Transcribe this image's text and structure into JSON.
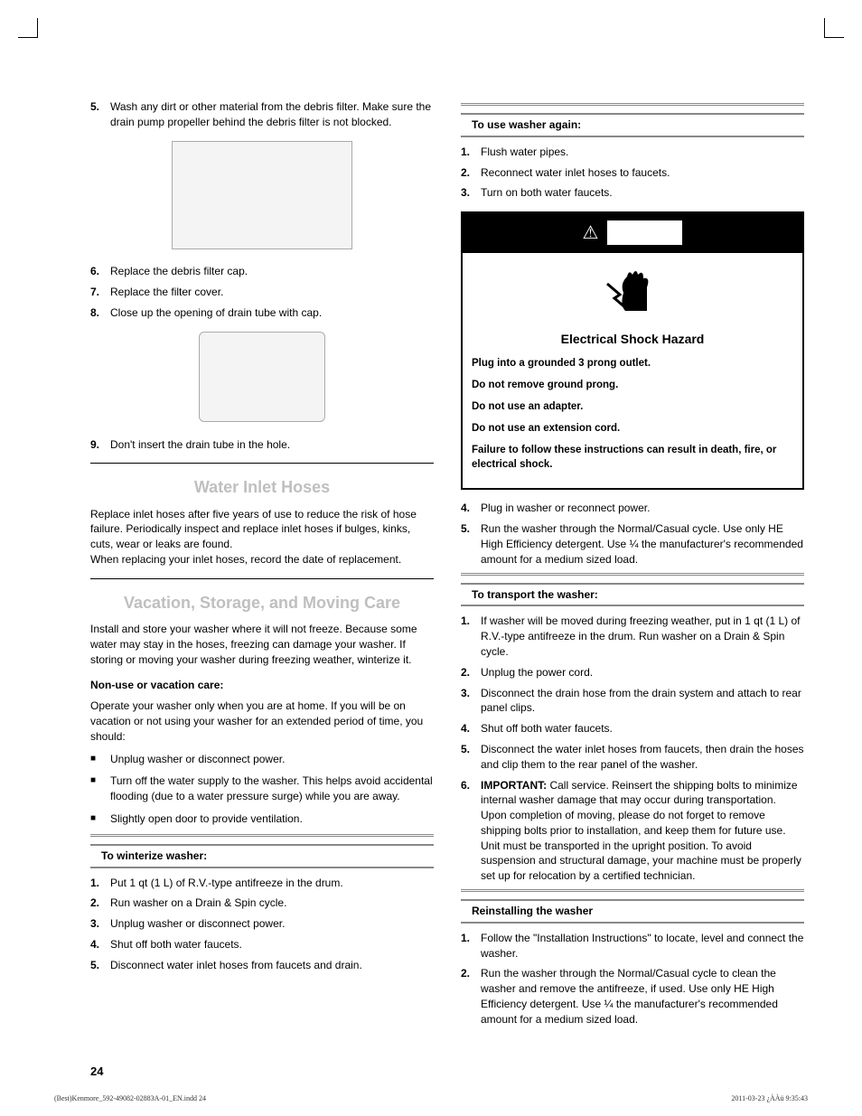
{
  "left": {
    "steps_a": [
      {
        "n": "5.",
        "t": "Wash any dirt or other material from the debris filter. Make sure the drain pump propeller behind the debris filter is not blocked."
      }
    ],
    "steps_b": [
      {
        "n": "6.",
        "t": "Replace the debris filter cap."
      },
      {
        "n": "7.",
        "t": "Replace the filter cover."
      },
      {
        "n": "8.",
        "t": "Close up the opening of drain tube with cap."
      }
    ],
    "steps_c": [
      {
        "n": "9.",
        "t": "Don't insert the drain tube in the hole."
      }
    ],
    "h_water": "Water Inlet Hoses",
    "water_p": "Replace inlet hoses after five years of use to reduce the risk of hose failure. Periodically inspect and replace inlet hoses if bulges, kinks, cuts, wear or leaks are found.\nWhen replacing your inlet hoses, record the date of replacement.",
    "h_vac": "Vacation, Storage, and Moving Care",
    "vac_p": "Install and store your washer where it will not freeze. Because some water may stay in the hoses, freezing can damage your washer. If storing or moving your washer during freezing weather, winterize it.",
    "nonuse_h": "Non-use or vacation care:",
    "nonuse_p": "Operate your washer only when you are at home. If you will be on vacation or not using your washer for an extended period of time, you should:",
    "nonuse_items": [
      "Unplug washer or disconnect power.",
      "Turn off the water supply to the washer. This helps avoid accidental flooding (due to a water pressure surge) while you are away.",
      "Slightly open door to provide ventilation."
    ],
    "winter_h": "To winterize washer:",
    "winter_steps": [
      {
        "n": "1.",
        "t": "Put 1 qt (1 L) of R.V.-type antifreeze in the drum."
      },
      {
        "n": "2.",
        "t": "Run washer on a Drain & Spin cycle."
      },
      {
        "n": "3.",
        "t": "Unplug washer or disconnect power."
      },
      {
        "n": "4.",
        "t": "Shut off both water faucets."
      },
      {
        "n": "5.",
        "t": "Disconnect water inlet hoses from faucets and drain."
      }
    ]
  },
  "right": {
    "use_h": "To use washer again:",
    "use_steps": [
      {
        "n": "1.",
        "t": "Flush water pipes."
      },
      {
        "n": "2.",
        "t": "Reconnect water inlet hoses to faucets."
      },
      {
        "n": "3.",
        "t": "Turn on both water faucets."
      }
    ],
    "warn_title": "Electrical Shock Hazard",
    "warn_lines": [
      "Plug into a grounded 3 prong outlet.",
      "Do not remove ground prong.",
      "Do not use an adapter.",
      "Do not use an extension cord.",
      "Failure to follow these instructions can result in death, fire, or electrical shock."
    ],
    "after_warn_steps": [
      {
        "n": "4.",
        "t": "Plug in washer or reconnect power."
      },
      {
        "n": "5.",
        "t": "Run the washer through the Normal/Casual cycle. Use only HE High Efficiency detergent. Use ¼ the manufacturer's recommended amount for a medium sized load."
      }
    ],
    "transport_h": "To transport the washer:",
    "transport_steps": [
      {
        "n": "1.",
        "t": "If washer will be moved during freezing weather, put in 1 qt (1 L) of R.V.-type antifreeze in the drum. Run washer on a Drain & Spin cycle."
      },
      {
        "n": "2.",
        "t": "Unplug the power cord."
      },
      {
        "n": "3.",
        "t": "Disconnect the drain hose from the drain system and attach to rear panel clips."
      },
      {
        "n": "4.",
        "t": "Shut off both water faucets."
      },
      {
        "n": "5.",
        "t": "Disconnect the water inlet hoses from faucets, then drain the hoses and clip them to the rear panel of the washer."
      }
    ],
    "transport_important_label": "IMPORTANT:",
    "transport_important_n": "6.",
    "transport_important_t": " Call service.  Reinsert the shipping bolts to minimize internal washer damage that may occur during transportation. Upon completion of moving, please do not forget to remove shipping bolts prior to installation, and keep them for future use. Unit must be transported in the upright position. To avoid suspension and  structural damage, your machine must be properly set up for relocation by a certified technician.",
    "reinstall_h": "Reinstalling the washer",
    "reinstall_steps": [
      {
        "n": "1.",
        "t": "Follow the \"Installation Instructions\" to locate, level and connect the washer."
      },
      {
        "n": "2.",
        "t": "Run the washer through the Normal/Casual cycle to clean the washer and remove the antifreeze, if used. Use only HE High Efficiency detergent. Use ¼ the manufacturer's recommended amount for a medium sized load."
      }
    ]
  },
  "pagenum": "24",
  "footer_left": "(Best)Kenmore_592-49082-02883A-01_EN.indd   24",
  "footer_right": "2011-03-23   ¿ÀÀü 9:35:43"
}
